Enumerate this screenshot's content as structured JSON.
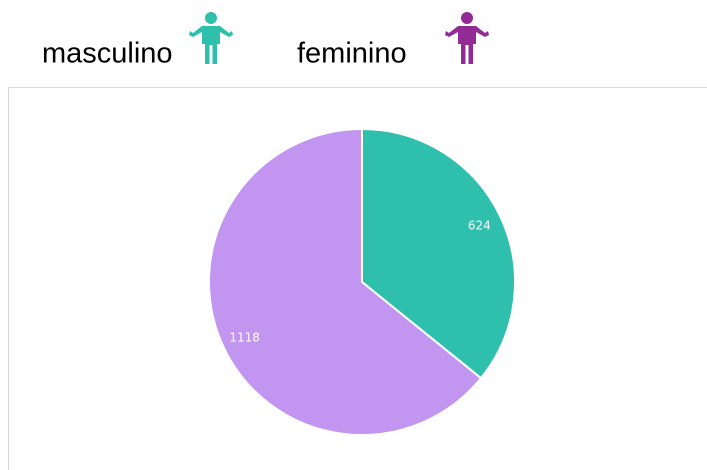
{
  "chart_data": {
    "type": "pie",
    "categories": [
      "masculino",
      "feminino"
    ],
    "values": [
      624,
      1118
    ],
    "colors": [
      "#2ebfad",
      "#c195f0"
    ],
    "legend_icon_colors": [
      "#2ebfad",
      "#922b96"
    ]
  }
}
